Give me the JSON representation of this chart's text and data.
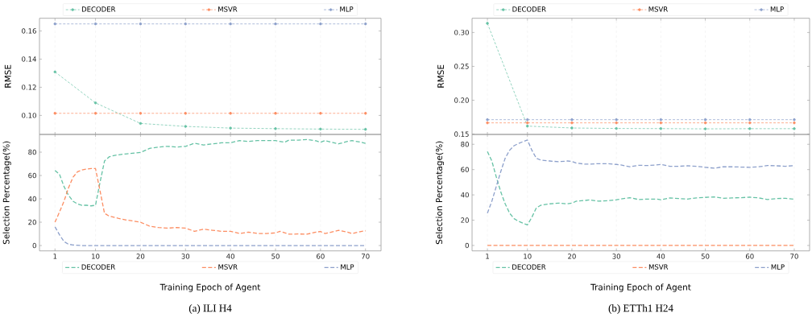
{
  "chart_data": [
    {
      "type": "line",
      "ylabel": "RMSE",
      "xlim": [
        -2.45,
        73.45
      ],
      "xticks": [
        1,
        10,
        20,
        30,
        40,
        50,
        60,
        70
      ],
      "ylim": [
        0.0865,
        0.169
      ],
      "yticks": [
        {
          "value": 0.1,
          "label": "0.10"
        },
        {
          "value": 0.12,
          "label": "0.12"
        },
        {
          "value": 0.14,
          "label": "0.14"
        },
        {
          "value": 0.16,
          "label": "0.16"
        }
      ],
      "tick_labels": "y",
      "grid": "x",
      "legend": "top",
      "marker": "circle",
      "line_style": "dashed",
      "series": [
        {
          "name": "DECODER",
          "color": "#66c2a5",
          "x": [
            1,
            10,
            20,
            30,
            40,
            50,
            60,
            70
          ],
          "values": [
            0.1309,
            0.1089,
            0.0943,
            0.0922,
            0.091,
            0.0906,
            0.0903,
            0.0901
          ]
        },
        {
          "name": "MSVR",
          "color": "#fc8d62",
          "x": [
            1,
            10,
            20,
            30,
            40,
            50,
            60,
            70
          ],
          "values": [
            0.1015,
            0.1015,
            0.1015,
            0.1015,
            0.1015,
            0.1015,
            0.1015,
            0.1015
          ]
        },
        {
          "name": "MLP",
          "color": "#8da0cb",
          "x": [
            1,
            10,
            20,
            30,
            40,
            50,
            60,
            70
          ],
          "values": [
            0.165,
            0.165,
            0.165,
            0.165,
            0.165,
            0.165,
            0.165,
            0.165
          ]
        }
      ]
    },
    {
      "type": "line",
      "ylabel": "Selection Percentage(%)",
      "xlabel": "Training Epoch of Agent",
      "annotations": [
        "(a) ILI H4"
      ],
      "xlim": [
        -2.45,
        73.45
      ],
      "xticks": [
        1,
        10,
        20,
        30,
        40,
        50,
        60,
        70
      ],
      "ylim": [
        -4.6,
        95.2
      ],
      "yticks": [
        0,
        20,
        40,
        60,
        80
      ],
      "grid": "x",
      "legend": "bottom",
      "marker": "none",
      "line_style": "dashed",
      "series": [
        {
          "name": "DECODER",
          "color": "#66c2a5",
          "x": [
            1,
            2,
            3,
            4,
            5,
            6,
            7,
            8,
            9,
            10,
            11,
            12,
            13,
            14,
            15,
            17,
            19,
            20,
            22,
            24,
            26,
            28,
            30,
            32,
            34,
            36,
            38,
            40,
            42,
            44,
            46,
            48,
            50,
            52,
            53,
            55,
            57,
            59,
            60,
            61,
            63,
            64,
            66,
            67,
            69,
            70
          ],
          "values": [
            64.4,
            61,
            50.6,
            43,
            38,
            35.6,
            34.5,
            34.5,
            34,
            34.5,
            54,
            72.4,
            75.9,
            77,
            77.7,
            78.6,
            79.3,
            79.8,
            83.2,
            84.4,
            85,
            84.4,
            85,
            87.6,
            86.2,
            87.1,
            88,
            88,
            89.9,
            89.2,
            89.9,
            89.9,
            89.9,
            88.5,
            90.3,
            90.3,
            90.8,
            89.7,
            88.5,
            89.9,
            88,
            87.1,
            89.2,
            89.9,
            88.5,
            87.6
          ]
        },
        {
          "name": "MSVR",
          "color": "#fc8d62",
          "x": [
            1,
            2,
            3,
            4,
            5,
            6,
            7,
            8,
            9,
            10,
            11,
            12,
            13,
            15,
            17,
            20,
            22,
            24,
            26,
            28,
            30,
            32,
            34,
            36,
            38,
            40,
            42,
            44,
            46,
            48,
            50,
            51,
            53,
            55,
            57,
            59,
            60,
            61,
            63,
            64,
            66,
            67,
            69,
            70
          ],
          "values": [
            20,
            28.7,
            38,
            49.4,
            58.6,
            63.2,
            64.8,
            65.5,
            66,
            66,
            47,
            27.6,
            25.3,
            23.4,
            21.8,
            20,
            16.6,
            15.4,
            14.9,
            15.4,
            14.9,
            12.2,
            14,
            13.1,
            12.2,
            12.2,
            10.3,
            11.5,
            10.3,
            10.3,
            10.8,
            12.2,
            9.7,
            9.9,
            9.7,
            11.5,
            12,
            10.3,
            12,
            13.1,
            11.5,
            10.3,
            12,
            12.6
          ]
        },
        {
          "name": "MLP",
          "color": "#8da0cb",
          "x": [
            1,
            2,
            3,
            4,
            5,
            7,
            10,
            20,
            30,
            40,
            50,
            60,
            70
          ],
          "values": [
            16,
            9.2,
            3.4,
            1.1,
            0.5,
            0,
            0,
            0,
            0,
            0,
            0,
            0,
            0
          ]
        }
      ]
    },
    {
      "type": "line",
      "ylabel": "RMSE",
      "xlim": [
        -2.45,
        73.45
      ],
      "xticks": [
        1,
        10,
        20,
        30,
        40,
        50,
        60,
        70
      ],
      "ylim": [
        0.1495,
        0.321
      ],
      "yticks": [
        {
          "value": 0.15,
          "label": "0.15"
        },
        {
          "value": 0.2,
          "label": "0.20"
        },
        {
          "value": 0.25,
          "label": "0.25"
        },
        {
          "value": 0.3,
          "label": "0.30"
        }
      ],
      "tick_labels": "y",
      "grid": "x",
      "legend": "top",
      "marker": "circle",
      "line_style": "dashed",
      "series": [
        {
          "name": "DECODER",
          "color": "#66c2a5",
          "x": [
            1,
            10,
            20,
            30,
            40,
            50,
            60,
            70
          ],
          "values": [
            0.3135,
            0.1618,
            0.159,
            0.1583,
            0.1581,
            0.1577,
            0.158,
            0.158
          ]
        },
        {
          "name": "MSVR",
          "color": "#fc8d62",
          "x": [
            1,
            10,
            20,
            30,
            40,
            50,
            60,
            70
          ],
          "values": [
            0.1666,
            0.1666,
            0.1666,
            0.1666,
            0.1666,
            0.1666,
            0.1666,
            0.1666
          ]
        },
        {
          "name": "MLP",
          "color": "#8da0cb",
          "x": [
            1,
            10,
            20,
            30,
            40,
            50,
            60,
            70
          ],
          "values": [
            0.1713,
            0.1713,
            0.1713,
            0.1713,
            0.1713,
            0.1713,
            0.1713,
            0.1713
          ]
        }
      ]
    },
    {
      "type": "line",
      "ylabel": "Selection Percentage(%)",
      "xlabel": "Training Epoch of Agent",
      "annotations": [
        "(b) ETTh1 H24"
      ],
      "xlim": [
        -2.45,
        73.45
      ],
      "xticks": [
        1,
        10,
        20,
        30,
        40,
        50,
        60,
        70
      ],
      "ylim": [
        -4.3,
        87.8
      ],
      "yticks": [
        0,
        20,
        40,
        60,
        80
      ],
      "grid": "x",
      "legend": "bottom",
      "marker": "none",
      "line_style": "dashed",
      "series": [
        {
          "name": "DECODER",
          "color": "#66c2a5",
          "x": [
            1,
            2,
            3,
            4,
            5,
            6,
            7,
            8,
            9,
            10,
            11,
            12,
            13,
            15,
            17,
            19,
            20,
            21,
            23,
            24,
            26,
            28,
            30,
            31,
            33,
            35,
            37,
            39,
            40,
            42,
            44,
            46,
            48,
            50,
            52,
            54,
            56,
            58,
            60,
            62,
            64,
            66,
            68,
            70
          ],
          "values": [
            74.3,
            66.8,
            54.1,
            42.4,
            32.9,
            25.5,
            21.2,
            19.1,
            17.6,
            16.3,
            22.3,
            29.7,
            31.8,
            32.9,
            33.5,
            32.9,
            33.5,
            35,
            35.6,
            36.1,
            35,
            35.4,
            36.1,
            36.7,
            37.8,
            36.3,
            36.7,
            36.7,
            36.1,
            37.6,
            37.1,
            36.7,
            37.6,
            38,
            38.4,
            37.3,
            37.6,
            37.8,
            38.2,
            37.6,
            36.3,
            37.1,
            37.3,
            36.5
          ]
        },
        {
          "name": "MSVR",
          "color": "#fc8d62",
          "x": [
            1,
            10,
            20,
            30,
            40,
            50,
            60,
            70
          ],
          "values": [
            0,
            0,
            0,
            0,
            0,
            0,
            0,
            0
          ]
        },
        {
          "name": "MLP",
          "color": "#8da0cb",
          "x": [
            1,
            2,
            3,
            4,
            5,
            6,
            7,
            8,
            9,
            10,
            11,
            12,
            13,
            15,
            17,
            19,
            20,
            21,
            23,
            24,
            26,
            28,
            30,
            31,
            33,
            35,
            37,
            39,
            40,
            42,
            44,
            46,
            48,
            50,
            52,
            54,
            56,
            58,
            60,
            62,
            64,
            66,
            68,
            70
          ],
          "values": [
            25.5,
            35,
            46.7,
            58.4,
            69,
            75.3,
            78.9,
            80.6,
            82.1,
            83.4,
            75.3,
            69,
            67.5,
            66.8,
            66.2,
            66.8,
            66.4,
            65.1,
            64.3,
            64.3,
            64.7,
            64.7,
            64.1,
            63.7,
            62.2,
            63.4,
            63.2,
            63.7,
            64.1,
            62.6,
            62.6,
            63,
            62.6,
            61.8,
            61.1,
            62.2,
            62.2,
            62,
            61.8,
            62.2,
            63.2,
            63,
            62.6,
            63.2
          ]
        }
      ]
    }
  ]
}
